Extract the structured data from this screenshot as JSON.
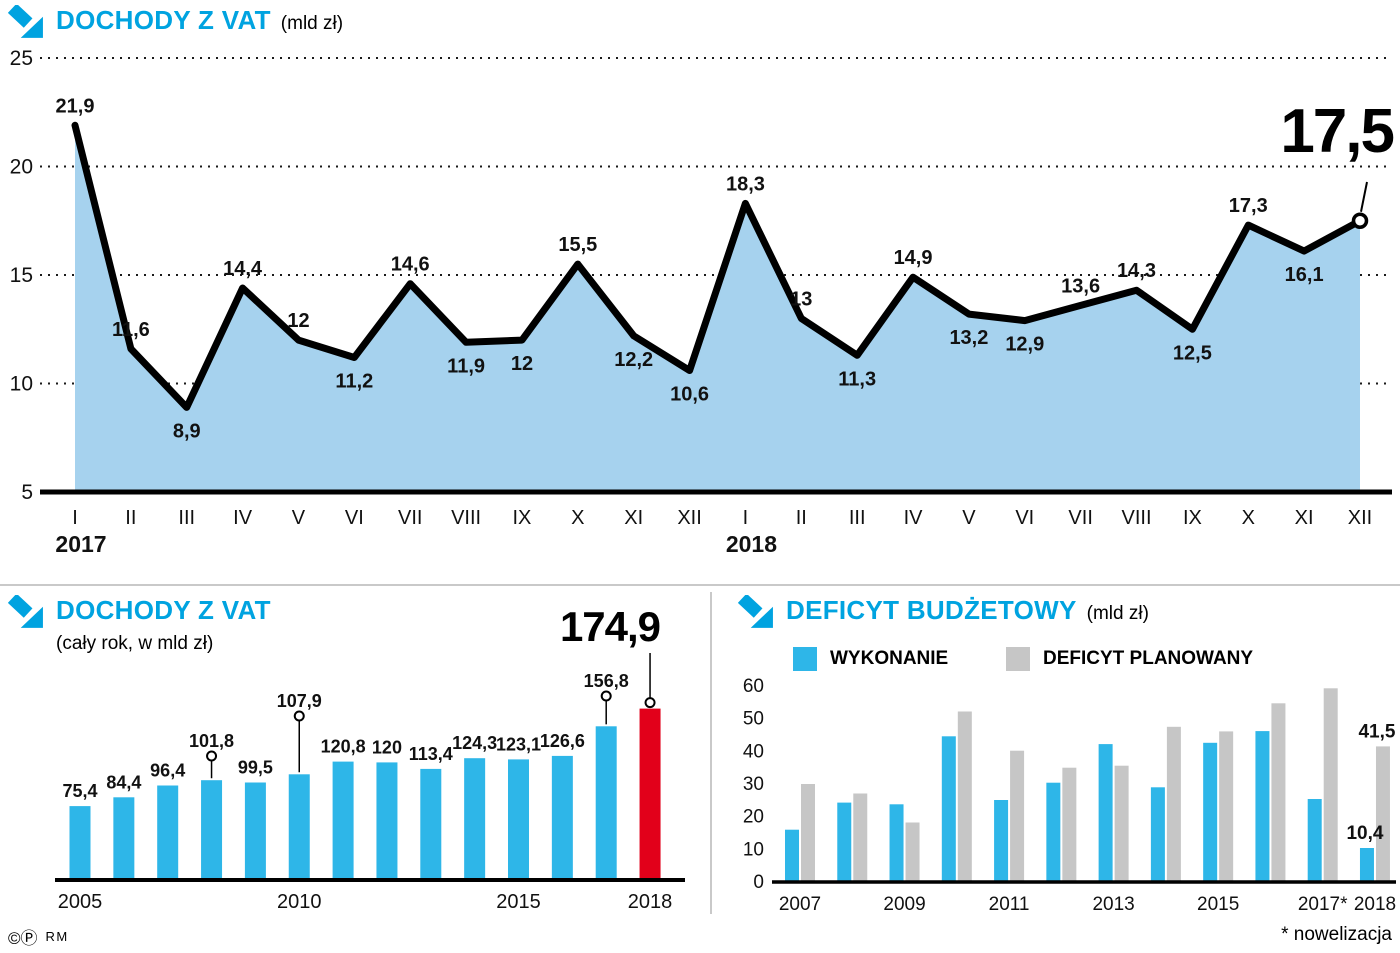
{
  "page": {
    "copyright_symbols": "©Ⓟ",
    "credit": "RM",
    "footnote": "* nowelizacja"
  },
  "colors": {
    "accent_blue": "#00a3e0",
    "area_fill": "#a6d2ee",
    "bar_blue": "#2eb6e8",
    "bar_gray": "#c6c6c6",
    "bar_red": "#e2001a",
    "line_black": "#000000"
  },
  "chart_data": [
    {
      "id": "vat_monthly",
      "type": "area",
      "title": "DOCHODY Z VAT",
      "unit": "(mld zł)",
      "ylim": [
        5,
        25
      ],
      "yticks": [
        "25",
        "20",
        "15",
        "10",
        "5"
      ],
      "grid": "dotted-horizontal",
      "categories": [
        "I",
        "II",
        "III",
        "IV",
        "V",
        "VI",
        "VII",
        "VIII",
        "IX",
        "X",
        "XI",
        "XII",
        "I",
        "II",
        "III",
        "IV",
        "V",
        "VI",
        "VII",
        "VIII",
        "IX",
        "X",
        "XI",
        "XII"
      ],
      "year_labels": [
        {
          "text": "2017",
          "index": 0
        },
        {
          "text": "2018",
          "index": 12
        }
      ],
      "values": [
        21.9,
        11.6,
        8.9,
        14.4,
        12,
        11.2,
        14.6,
        11.9,
        12,
        15.5,
        12.2,
        10.6,
        18.3,
        13,
        11.3,
        14.9,
        13.2,
        12.9,
        13.6,
        14.3,
        12.5,
        17.3,
        16.1,
        17.5
      ],
      "point_labels": [
        "21,9",
        "11,6",
        "8,9",
        "14,4",
        "12",
        "11,2",
        "14,6",
        "11,9",
        "12",
        "15,5",
        "12,2",
        "10,6",
        "18,3",
        "13",
        "11,3",
        "14,9",
        "13,2",
        "12,9",
        "13,6",
        "14,3",
        "12,5",
        "17,3",
        "16,1",
        ""
      ],
      "label_positions": [
        "above",
        "above",
        "below",
        "above",
        "above",
        "below",
        "above",
        "below",
        "below",
        "above",
        "below",
        "below",
        "above",
        "above",
        "below",
        "above",
        "below",
        "below",
        "above",
        "above",
        "below",
        "above",
        "below",
        "none"
      ],
      "highlight": {
        "label": "17,5",
        "index": 23
      }
    },
    {
      "id": "vat_yearly",
      "type": "bar",
      "title": "DOCHODY Z VAT",
      "subtitle": "(cały rok, w mld zł)",
      "categories": [
        "2005",
        "2006",
        "2007",
        "2008",
        "2009",
        "2010",
        "2011",
        "2012",
        "2013",
        "2014",
        "2015",
        "2016",
        "2017",
        "2018"
      ],
      "values": [
        75.4,
        84.4,
        96.4,
        101.8,
        99.5,
        107.9,
        120.8,
        120,
        113.4,
        124.3,
        123.1,
        126.6,
        156.8,
        174.9
      ],
      "bar_labels": [
        "75,4",
        "84,4",
        "96,4",
        "101,8",
        "99,5",
        "107,9",
        "120,8",
        "120",
        "113,4",
        "124,3",
        "123,1",
        "126,6",
        "156,8",
        ""
      ],
      "elevated_label_indexes": [
        3,
        5,
        12
      ],
      "x_tick_indexes": [
        0,
        5,
        10,
        13
      ],
      "highlight": {
        "label": "174,9",
        "index": 13,
        "color": "#e2001a"
      }
    },
    {
      "id": "deficit",
      "type": "grouped_bar",
      "title": "DEFICYT BUDŻETOWY",
      "unit": "(mld zł)",
      "ylim": [
        0,
        60
      ],
      "yticks": [
        "60",
        "50",
        "40",
        "30",
        "20",
        "10",
        "0"
      ],
      "categories": [
        "2007",
        "2008",
        "2009",
        "2010",
        "2011",
        "2012",
        "2013",
        "2014",
        "2015",
        "2016",
        "2017",
        "2018"
      ],
      "series": [
        {
          "name": "WYKONANIE",
          "color": "#2eb6e8",
          "values": [
            16.0,
            24.3,
            23.8,
            44.6,
            25.1,
            30.4,
            42.2,
            29.0,
            42.6,
            46.2,
            25.4,
            10.4
          ]
        },
        {
          "name": "DEFICYT PLANOWANY",
          "color": "#c6c6c6",
          "values": [
            30.0,
            27.1,
            18.2,
            52.2,
            40.2,
            35.0,
            35.6,
            47.5,
            46.1,
            54.7,
            59.3,
            41.5
          ]
        }
      ],
      "end_labels": [
        {
          "series": 0,
          "index": 11,
          "text": "10,4"
        },
        {
          "series": 1,
          "index": 11,
          "text": "41,5"
        }
      ],
      "x_tick_indexes": [
        0,
        2,
        4,
        6,
        8,
        10,
        11
      ],
      "x_tick_labels": [
        "2007",
        "2009",
        "2011",
        "2013",
        "2015",
        "2017*",
        "2018"
      ]
    }
  ]
}
